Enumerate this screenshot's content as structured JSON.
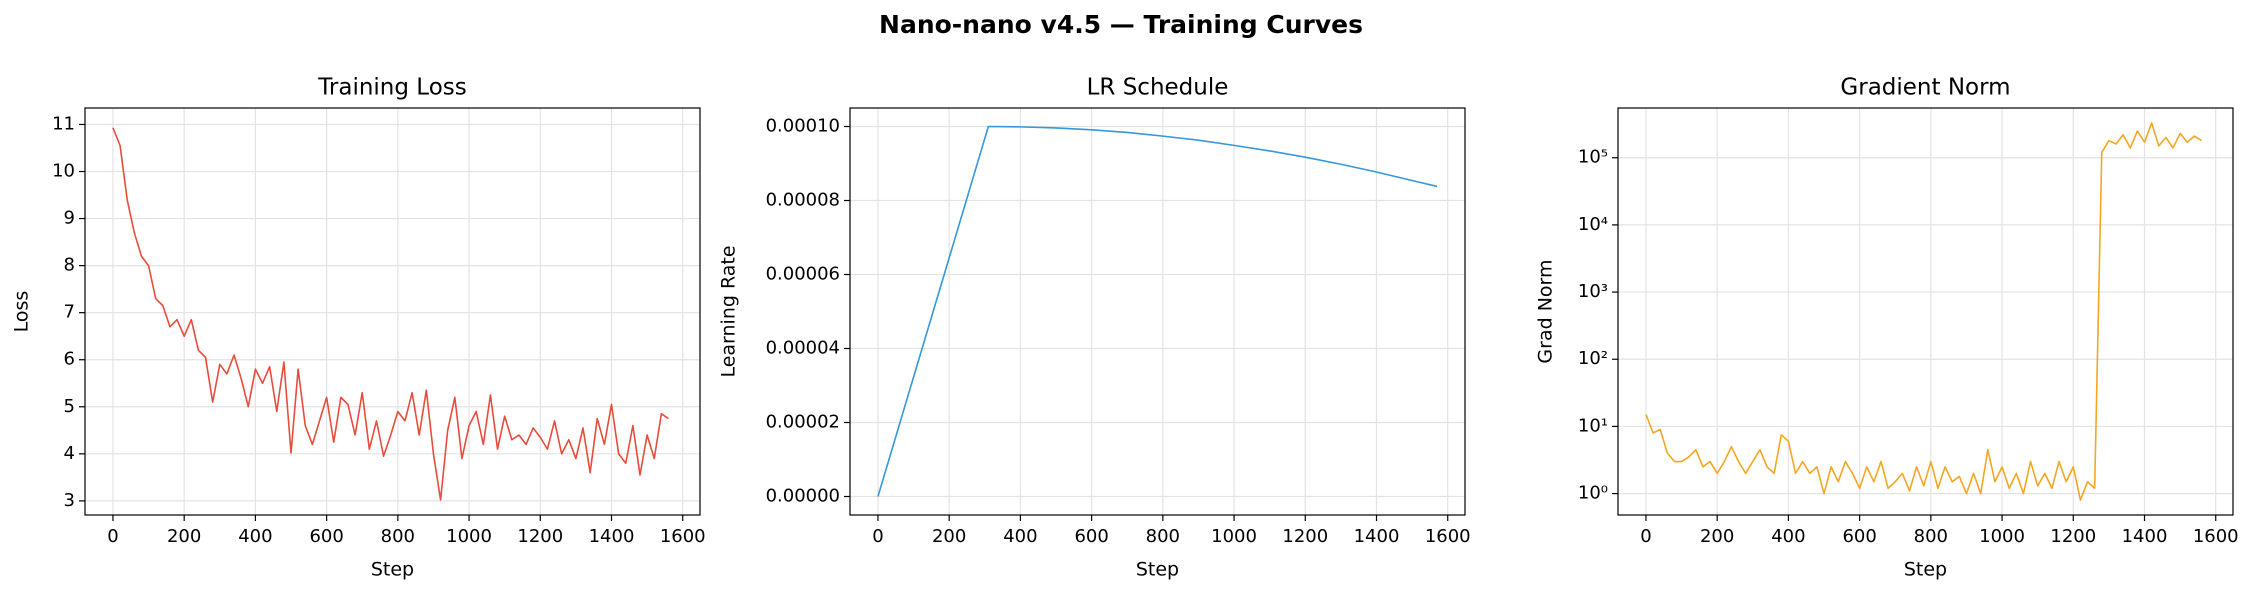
{
  "title": "Nano-nano v4.5 — Training Curves",
  "chart_data": [
    {
      "type": "line",
      "title": "Training Loss",
      "xlabel": "Step",
      "ylabel": "Loss",
      "grid": true,
      "yscale": "linear",
      "xlim": [
        -78.5,
        1648.5
      ],
      "ylim": [
        2.7,
        11.35
      ],
      "xticks": [
        0,
        200,
        400,
        600,
        800,
        1000,
        1200,
        1400,
        1600
      ],
      "yticks": [
        3,
        4,
        5,
        6,
        7,
        8,
        9,
        10,
        11
      ],
      "x": [
        0,
        20,
        40,
        60,
        80,
        100,
        120,
        140,
        160,
        180,
        200,
        220,
        240,
        260,
        280,
        300,
        320,
        340,
        360,
        380,
        400,
        420,
        440,
        460,
        480,
        500,
        520,
        540,
        560,
        580,
        600,
        620,
        640,
        660,
        680,
        700,
        720,
        740,
        760,
        780,
        800,
        820,
        840,
        860,
        880,
        900,
        920,
        940,
        960,
        980,
        1000,
        1020,
        1040,
        1060,
        1080,
        1100,
        1120,
        1140,
        1160,
        1180,
        1200,
        1220,
        1240,
        1260,
        1280,
        1300,
        1320,
        1340,
        1360,
        1380,
        1400,
        1420,
        1440,
        1460,
        1480,
        1500,
        1520,
        1540,
        1560
      ],
      "series": [
        {
          "name": "Loss",
          "color": "#e74c3c",
          "values": [
            10.93,
            10.55,
            9.4,
            8.7,
            8.2,
            8.0,
            7.3,
            7.15,
            6.7,
            6.85,
            6.5,
            6.85,
            6.2,
            6.05,
            5.1,
            5.9,
            5.7,
            6.1,
            5.6,
            5.0,
            5.8,
            5.5,
            5.85,
            4.9,
            5.95,
            4.02,
            5.8,
            4.6,
            4.2,
            4.7,
            5.2,
            4.25,
            5.2,
            5.05,
            4.4,
            5.3,
            4.1,
            4.7,
            3.95,
            4.4,
            4.9,
            4.7,
            5.3,
            4.4,
            5.35,
            4.0,
            3.02,
            4.5,
            5.2,
            3.9,
            4.6,
            4.9,
            4.2,
            5.25,
            4.1,
            4.8,
            4.3,
            4.4,
            4.2,
            4.55,
            4.35,
            4.1,
            4.7,
            4.0,
            4.3,
            3.9,
            4.55,
            3.6,
            4.75,
            4.2,
            5.05,
            4.0,
            3.8,
            4.6,
            3.55,
            4.4,
            3.9,
            4.85,
            4.75
          ]
        }
      ]
    },
    {
      "type": "line",
      "title": "LR Schedule",
      "xlabel": "Step",
      "ylabel": "Learning Rate",
      "grid": true,
      "yscale": "linear",
      "xlim": [
        -78.5,
        1648.5
      ],
      "ylim": [
        -5e-06,
        0.000105
      ],
      "xticks": [
        0,
        200,
        400,
        600,
        800,
        1000,
        1200,
        1400,
        1600
      ],
      "yticks": [
        {
          "value": 0,
          "label": "0.00000"
        },
        {
          "value": 2e-05,
          "label": "0.00002"
        },
        {
          "value": 4e-05,
          "label": "0.00004"
        },
        {
          "value": 6e-05,
          "label": "0.00006"
        },
        {
          "value": 8e-05,
          "label": "0.00008"
        },
        {
          "value": 0.0001,
          "label": "0.00010"
        }
      ],
      "x": [
        0,
        100,
        200,
        310,
        400,
        500,
        600,
        700,
        800,
        900,
        1000,
        1100,
        1200,
        1300,
        1400,
        1500,
        1570
      ],
      "series": [
        {
          "name": "Learning Rate",
          "color": "#3498db",
          "values": [
            0,
            3.23e-05,
            6.45e-05,
            0.0001,
            9.99e-05,
            9.96e-05,
            9.91e-05,
            9.84e-05,
            9.74e-05,
            9.63e-05,
            9.49e-05,
            9.34e-05,
            9.17e-05,
            8.98e-05,
            8.77e-05,
            8.54e-05,
            8.38e-05
          ]
        }
      ]
    },
    {
      "type": "line",
      "title": "Gradient Norm",
      "xlabel": "Step",
      "ylabel": "Grad Norm",
      "grid": true,
      "yscale": "log",
      "xlim": [
        -78.5,
        1648.5
      ],
      "ylim": [
        0.48,
        550000
      ],
      "xticks": [
        0,
        200,
        400,
        600,
        800,
        1000,
        1200,
        1400,
        1600
      ],
      "yticks": [
        {
          "value": 1,
          "label": "10⁰"
        },
        {
          "value": 10,
          "label": "10¹"
        },
        {
          "value": 100,
          "label": "10²"
        },
        {
          "value": 1000,
          "label": "10³"
        },
        {
          "value": 10000,
          "label": "10⁴"
        },
        {
          "value": 100000,
          "label": "10⁵"
        }
      ],
      "x": [
        0,
        20,
        40,
        60,
        80,
        100,
        120,
        140,
        160,
        180,
        200,
        220,
        240,
        260,
        280,
        300,
        320,
        340,
        360,
        380,
        400,
        420,
        440,
        460,
        480,
        500,
        520,
        540,
        560,
        580,
        600,
        620,
        640,
        660,
        680,
        700,
        720,
        740,
        760,
        780,
        800,
        820,
        840,
        860,
        880,
        900,
        920,
        940,
        960,
        980,
        1000,
        1020,
        1040,
        1060,
        1080,
        1100,
        1120,
        1140,
        1160,
        1180,
        1200,
        1220,
        1240,
        1260,
        1280,
        1300,
        1320,
        1340,
        1360,
        1380,
        1400,
        1420,
        1440,
        1460,
        1480,
        1500,
        1520,
        1540,
        1560
      ],
      "series": [
        {
          "name": "Grad Norm",
          "color": "#f5a623",
          "values": [
            15,
            8,
            9,
            4,
            3,
            3,
            3.5,
            4.5,
            2.5,
            3,
            2,
            3,
            5,
            3,
            2,
            3,
            4.5,
            2.5,
            2,
            7.5,
            6,
            2,
            3,
            2,
            2.5,
            1,
            2.5,
            1.5,
            3,
            2,
            1.2,
            2.5,
            1.5,
            3,
            1.2,
            1.5,
            2,
            1.1,
            2.5,
            1.3,
            3,
            1.2,
            2.5,
            1.5,
            1.8,
            1,
            2,
            1,
            4.5,
            1.5,
            2.5,
            1.2,
            2,
            1,
            3,
            1.3,
            2,
            1.2,
            3,
            1.5,
            2.5,
            0.8,
            1.5,
            1.2,
            120000,
            180000,
            160000,
            220000,
            140000,
            250000,
            170000,
            330000,
            150000,
            200000,
            140000,
            230000,
            170000,
            210000,
            180000
          ]
        }
      ]
    }
  ]
}
